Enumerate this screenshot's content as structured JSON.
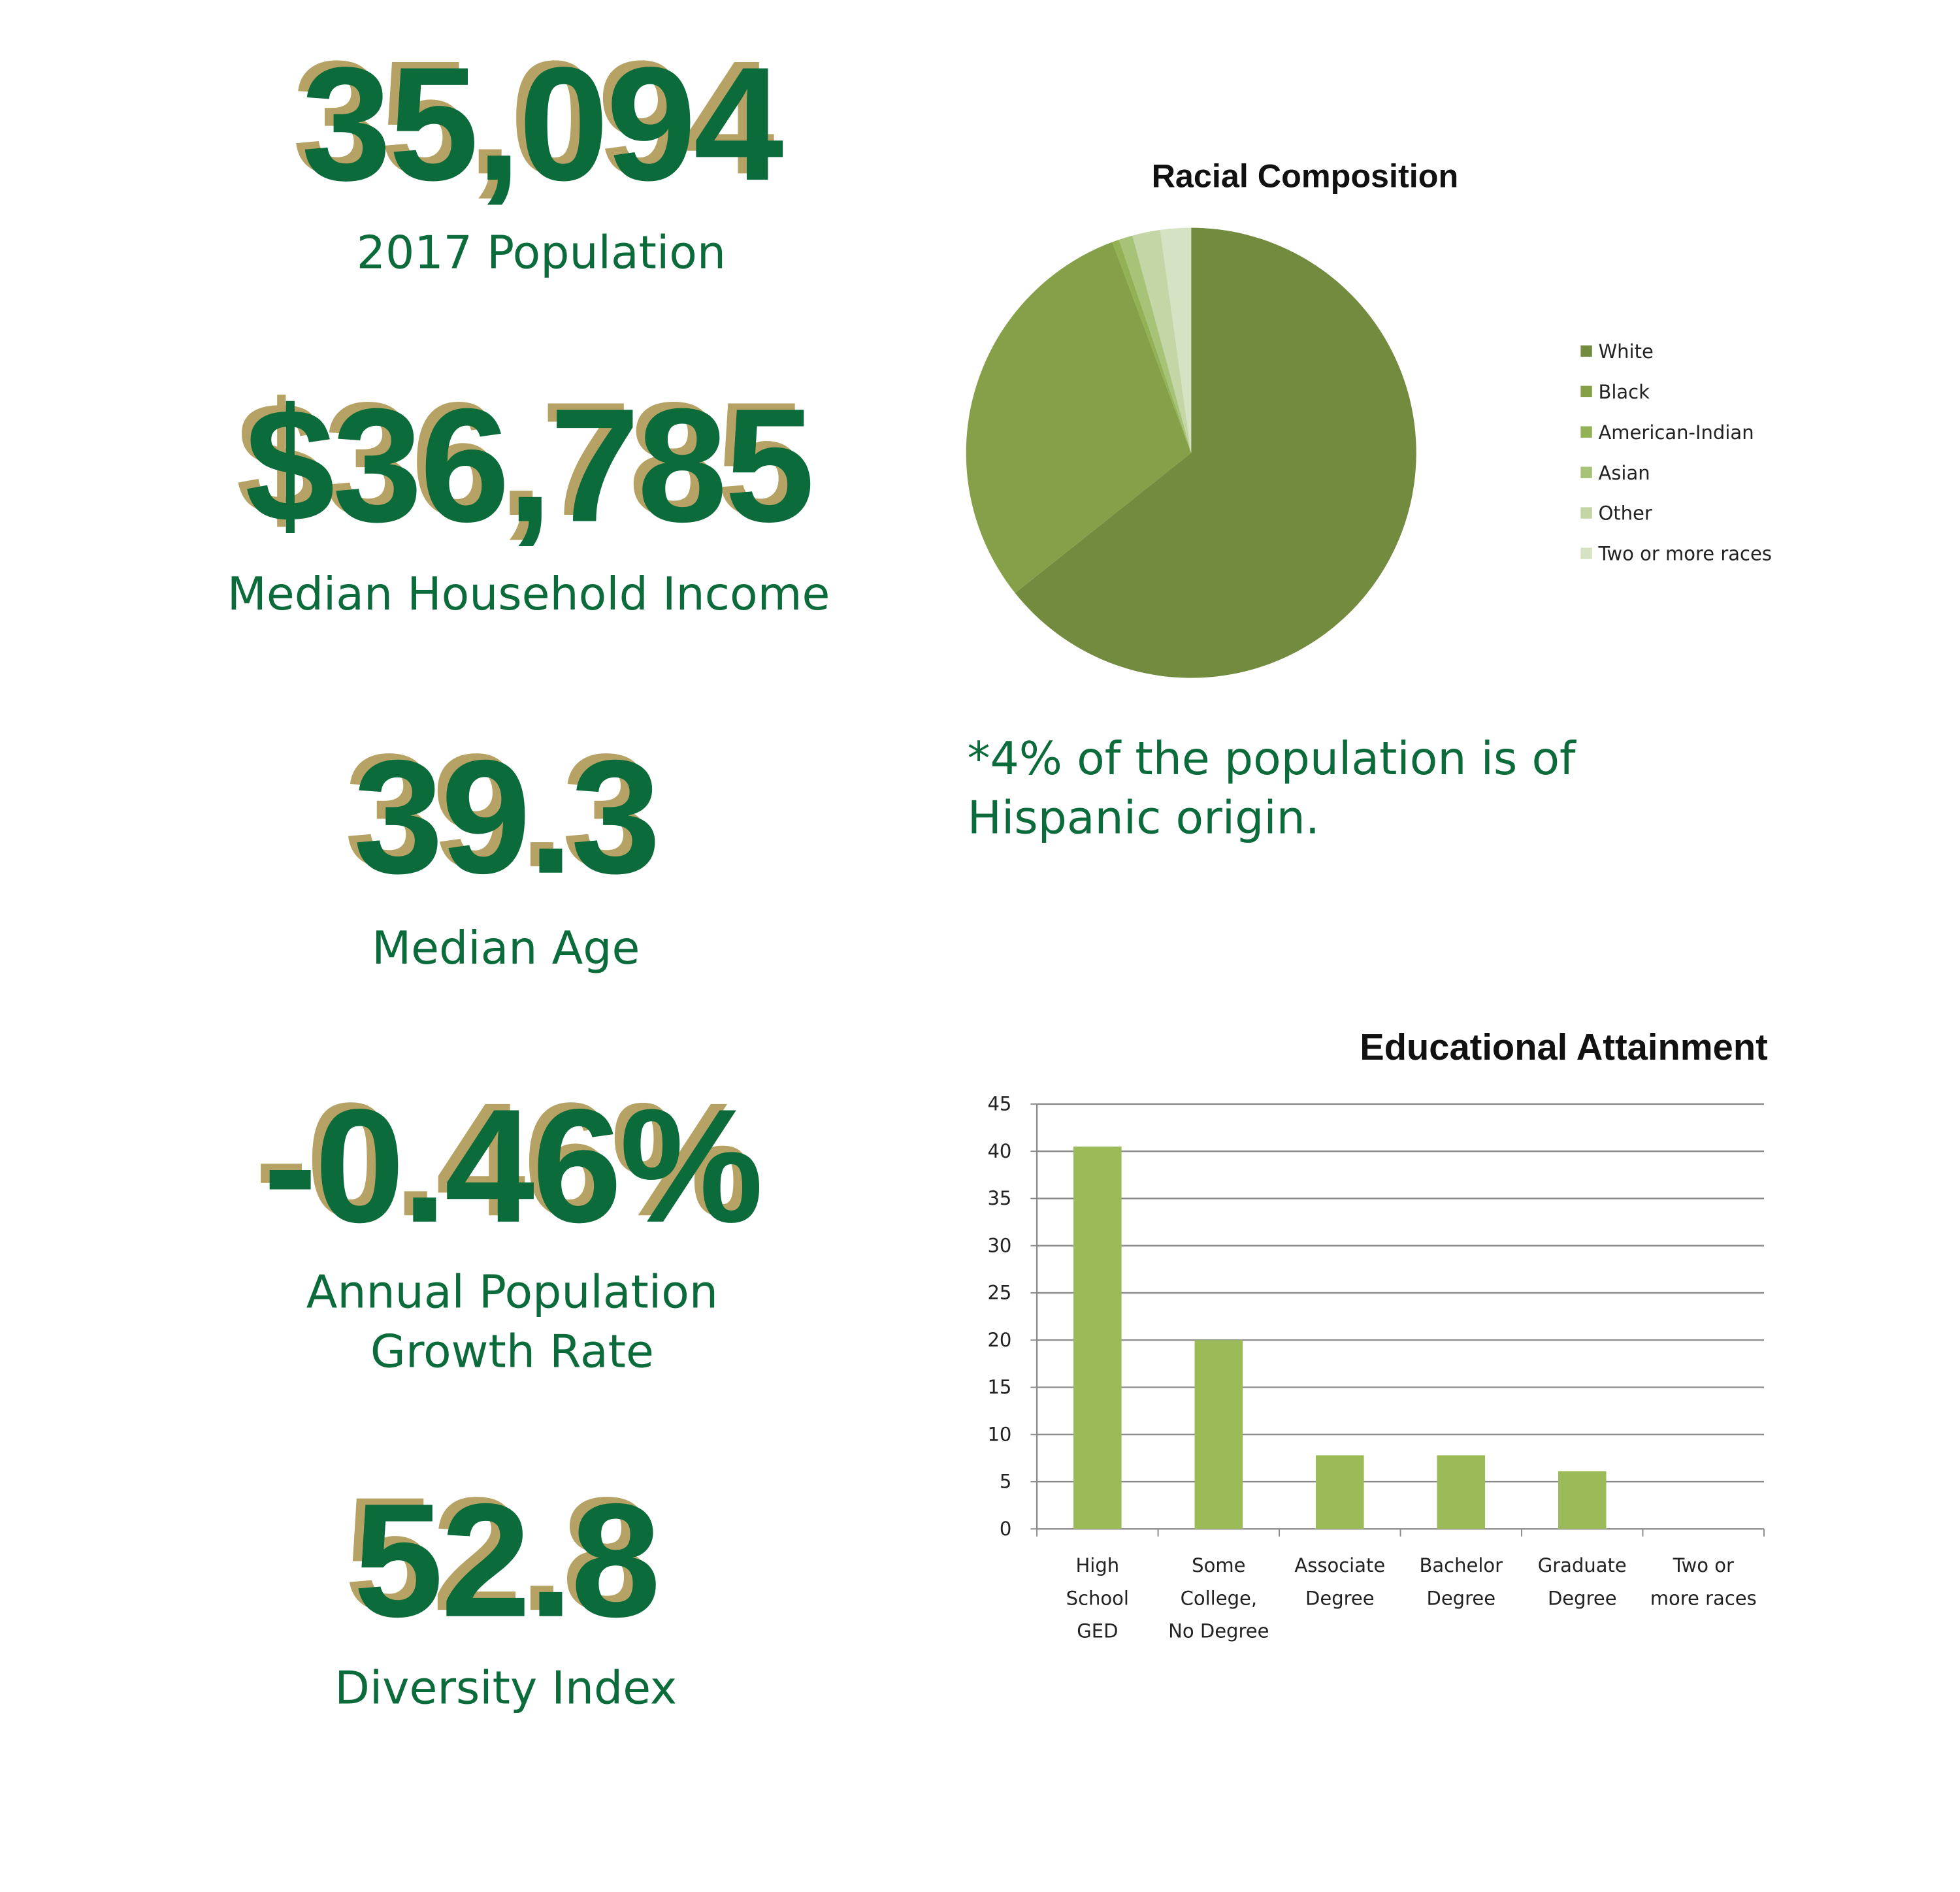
{
  "stats": [
    {
      "value": "35,094",
      "label": [
        "2017 Population"
      ]
    },
    {
      "value": "$36,785",
      "label": [
        "Median Household Income"
      ]
    },
    {
      "value": "39.3",
      "label": [
        "Median Age"
      ]
    },
    {
      "value": "-0.46%",
      "label": [
        "Annual Population",
        "Growth Rate"
      ]
    },
    {
      "value": "52.8",
      "label": [
        "Diversity Index"
      ]
    }
  ],
  "note": [
    "*4% of the population is of",
    "Hispanic origin."
  ],
  "chart_data": [
    {
      "type": "pie",
      "title": "Racial Composition",
      "categories": [
        "White",
        "Black",
        "American-Indian",
        "Asian",
        "Other",
        "Two or more races"
      ],
      "values": [
        64.3,
        30,
        0.5,
        1,
        2,
        2.2
      ],
      "colors": [
        "#738b3e",
        "#86a04a",
        "#93b155",
        "#a6c378",
        "#c4d5a6",
        "#d6e2c4"
      ]
    },
    {
      "type": "bar",
      "title": "Educational Attainment",
      "categories": [
        [
          "High",
          "School",
          "GED"
        ],
        [
          "Some",
          "College,",
          "No Degree"
        ],
        [
          "Associate",
          "Degree"
        ],
        [
          "Bachelor",
          "Degree"
        ],
        [
          "Graduate",
          "Degree"
        ],
        [
          "Two or",
          "more races"
        ]
      ],
      "values": [
        40.5,
        20,
        7.8,
        7.8,
        6.1,
        0
      ],
      "color": "#9bbb59",
      "ylim": [
        0,
        45
      ],
      "yticks": [
        0,
        5,
        10,
        15,
        20,
        25,
        30,
        35,
        40,
        45
      ],
      "grid": true
    }
  ]
}
